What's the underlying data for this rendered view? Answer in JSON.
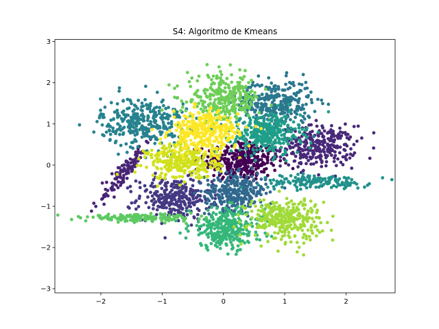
{
  "chart_data": {
    "type": "scatter",
    "title": "S4: Algoritmo de Kmeans",
    "xlabel": "",
    "ylabel": "",
    "xlim": [
      -2.75,
      2.8
    ],
    "ylim": [
      -3.1,
      3.05
    ],
    "x_ticks": [
      -2,
      -1,
      0,
      1,
      2
    ],
    "y_ticks": [
      -3,
      -2,
      -1,
      0,
      1,
      2,
      3
    ],
    "x_tick_labels": [
      "−2",
      "−1",
      "0",
      "1",
      "2"
    ],
    "y_tick_labels": [
      "−3",
      "−2",
      "−1",
      "0",
      "1",
      "2",
      "3"
    ],
    "grid": false,
    "legend": "none",
    "clusters": [
      {
        "id": 1,
        "color": "#440154",
        "center": [
          0.3,
          0.1
        ],
        "spread": [
          0.3,
          0.25
        ],
        "count": 320
      },
      {
        "id": 2,
        "color": "#482878",
        "center": [
          1.55,
          0.45
        ],
        "spread": [
          0.3,
          0.25
        ],
        "count": 300
      },
      {
        "id": 3,
        "color": "#443983",
        "center": [
          -0.8,
          -0.8
        ],
        "spread": [
          0.3,
          0.25
        ],
        "count": 280
      },
      {
        "id": 4,
        "color": "#482475",
        "center": [
          -1.6,
          -0.15
        ],
        "spread": [
          0.12,
          0.35
        ],
        "count": 120
      },
      {
        "id": 5,
        "color": "#31688e",
        "center": [
          0.2,
          -0.65
        ],
        "spread": [
          0.25,
          0.22
        ],
        "count": 300
      },
      {
        "id": 6,
        "color": "#2a788e",
        "center": [
          0.85,
          1.5
        ],
        "spread": [
          0.3,
          0.28
        ],
        "count": 320
      },
      {
        "id": 7,
        "color": "#26828e",
        "center": [
          -1.3,
          1.05
        ],
        "spread": [
          0.35,
          0.3
        ],
        "count": 320
      },
      {
        "id": 8,
        "color": "#21918c",
        "center": [
          1.5,
          -0.4
        ],
        "spread": [
          0.45,
          0.08
        ],
        "count": 150
      },
      {
        "id": 9,
        "color": "#1f9e89",
        "center": [
          0.7,
          0.75
        ],
        "spread": [
          0.28,
          0.25
        ],
        "count": 320
      },
      {
        "id": 10,
        "color": "#35b779",
        "center": [
          0.05,
          -1.55
        ],
        "spread": [
          0.3,
          0.25
        ],
        "count": 300
      },
      {
        "id": 11,
        "color": "#5ec962",
        "center": [
          -1.35,
          -1.28
        ],
        "spread": [
          0.45,
          0.04
        ],
        "count": 160
      },
      {
        "id": 12,
        "color": "#6ece58",
        "center": [
          0.0,
          1.6
        ],
        "spread": [
          0.3,
          0.28
        ],
        "count": 300
      },
      {
        "id": 13,
        "color": "#a0da39",
        "center": [
          1.0,
          -1.3
        ],
        "spread": [
          0.3,
          0.25
        ],
        "count": 300
      },
      {
        "id": 14,
        "color": "#d0e11c",
        "center": [
          -0.65,
          0.1
        ],
        "spread": [
          0.3,
          0.22
        ],
        "count": 300
      },
      {
        "id": 15,
        "color": "#fde725",
        "center": [
          -0.3,
          0.8
        ],
        "spread": [
          0.28,
          0.25
        ],
        "count": 320
      }
    ]
  }
}
